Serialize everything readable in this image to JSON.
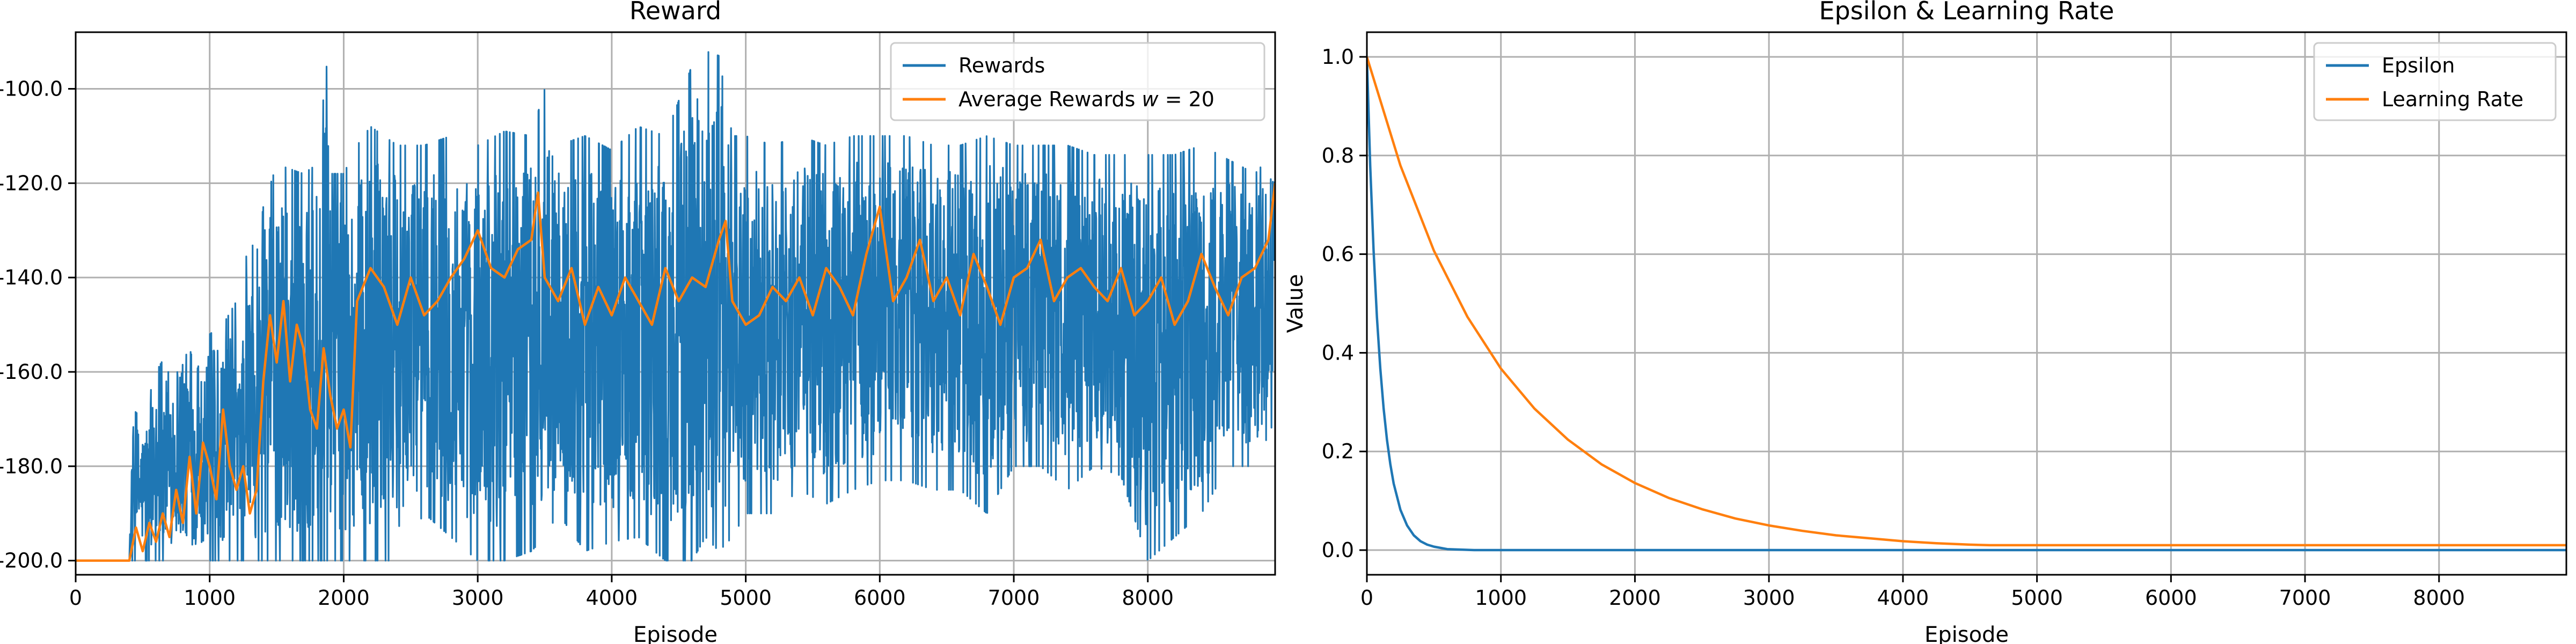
{
  "chart_data": [
    {
      "type": "line",
      "title": "Reward",
      "xlabel": "Episode",
      "ylabel": "",
      "xlim": [
        0,
        8950
      ],
      "ylim": [
        -203,
        -88
      ],
      "x_ticks": [
        0,
        1000,
        2000,
        3000,
        4000,
        5000,
        6000,
        7000,
        8000
      ],
      "y_ticks": [
        -200,
        -180,
        -160,
        -140,
        -120,
        -100
      ],
      "grid": true,
      "legend_position": "top-right",
      "series": [
        {
          "name": "Rewards",
          "color": "#1f77b4",
          "style": "noisy band",
          "envelope_x": [
            0,
            400,
            430,
            500,
            600,
            700,
            800,
            900,
            1000,
            1100,
            1200,
            1300,
            1350,
            1400,
            1500,
            1600,
            1700,
            1800,
            1880,
            1900,
            2000,
            2100,
            2200,
            2400,
            2600,
            2800,
            3000,
            3200,
            3400,
            3500,
            3600,
            3800,
            4000,
            4200,
            4400,
            4600,
            4700,
            4800,
            4900,
            5000,
            5200,
            5400,
            5600,
            5800,
            6000,
            6200,
            6400,
            6600,
            6800,
            7000,
            7200,
            7400,
            7600,
            7800,
            8000,
            8200,
            8400,
            8600,
            8800,
            8950
          ],
          "envelope_upper": [
            -200,
            -200,
            -168,
            -170,
            -160,
            -155,
            -150,
            -160,
            -152,
            -150,
            -145,
            -132,
            -135,
            -125,
            -116,
            -117,
            -118,
            -116,
            -93,
            -118,
            -118,
            -112,
            -108,
            -112,
            -112,
            -110,
            -112,
            -109,
            -110,
            -100,
            -112,
            -110,
            -113,
            -108,
            -110,
            -95,
            -92,
            -93,
            -110,
            -110,
            -112,
            -110,
            -112,
            -110,
            -110,
            -110,
            -112,
            -112,
            -110,
            -112,
            -112,
            -112,
            -114,
            -114,
            -114,
            -114,
            -112,
            -115,
            -118,
            -113
          ],
          "envelope_lower": [
            -200,
            -200,
            -200,
            -200,
            -200,
            -200,
            -200,
            -200,
            -200,
            -200,
            -200,
            -200,
            -200,
            -200,
            -200,
            -200,
            -200,
            -200,
            -200,
            -200,
            -200,
            -200,
            -200,
            -200,
            -190,
            -195,
            -200,
            -200,
            -198,
            -195,
            -190,
            -198,
            -196,
            -195,
            -200,
            -200,
            -195,
            -198,
            -195,
            -190,
            -190,
            -185,
            -188,
            -185,
            -183,
            -183,
            -185,
            -185,
            -190,
            -180,
            -180,
            -185,
            -180,
            -182,
            -200,
            -195,
            -190,
            -180,
            -180,
            -170
          ]
        },
        {
          "name": "Average Rewards $w = 20$",
          "color": "#ff7f0e",
          "x": [
            0,
            400,
            450,
            500,
            550,
            600,
            650,
            700,
            750,
            800,
            850,
            900,
            950,
            1000,
            1050,
            1100,
            1150,
            1200,
            1250,
            1300,
            1350,
            1400,
            1450,
            1500,
            1550,
            1600,
            1650,
            1700,
            1750,
            1800,
            1850,
            1900,
            1950,
            2000,
            2050,
            2100,
            2200,
            2300,
            2400,
            2500,
            2600,
            2700,
            2800,
            2900,
            3000,
            3100,
            3200,
            3300,
            3400,
            3450,
            3500,
            3600,
            3700,
            3800,
            3900,
            4000,
            4100,
            4200,
            4300,
            4400,
            4500,
            4600,
            4700,
            4800,
            4850,
            4900,
            5000,
            5100,
            5200,
            5300,
            5400,
            5500,
            5600,
            5700,
            5800,
            5900,
            6000,
            6100,
            6200,
            6300,
            6400,
            6500,
            6600,
            6700,
            6800,
            6900,
            7000,
            7100,
            7200,
            7300,
            7400,
            7500,
            7600,
            7700,
            7800,
            7900,
            8000,
            8100,
            8200,
            8300,
            8400,
            8500,
            8600,
            8700,
            8800,
            8900,
            8950
          ],
          "y": [
            -200,
            -200,
            -193,
            -198,
            -192,
            -196,
            -190,
            -195,
            -185,
            -192,
            -178,
            -190,
            -175,
            -180,
            -187,
            -168,
            -180,
            -185,
            -180,
            -190,
            -185,
            -162,
            -148,
            -158,
            -145,
            -162,
            -150,
            -155,
            -168,
            -172,
            -155,
            -165,
            -172,
            -168,
            -176,
            -145,
            -138,
            -142,
            -150,
            -140,
            -148,
            -145,
            -140,
            -136,
            -130,
            -138,
            -140,
            -134,
            -132,
            -122,
            -140,
            -145,
            -138,
            -150,
            -142,
            -148,
            -140,
            -145,
            -150,
            -138,
            -145,
            -140,
            -142,
            -132,
            -128,
            -145,
            -150,
            -148,
            -142,
            -145,
            -140,
            -148,
            -138,
            -142,
            -148,
            -135,
            -125,
            -145,
            -140,
            -132,
            -145,
            -140,
            -148,
            -135,
            -142,
            -150,
            -140,
            -138,
            -132,
            -145,
            -140,
            -138,
            -142,
            -145,
            -138,
            -148,
            -145,
            -140,
            -150,
            -145,
            -135,
            -142,
            -148,
            -140,
            -138,
            -132,
            -120
          ]
        }
      ]
    },
    {
      "type": "line",
      "title": "Epsilon & Learning Rate",
      "xlabel": "Episode",
      "ylabel": "Value",
      "xlim": [
        0,
        8950
      ],
      "ylim": [
        -0.05,
        1.05
      ],
      "x_ticks": [
        0,
        1000,
        2000,
        3000,
        4000,
        5000,
        6000,
        7000,
        8000
      ],
      "y_ticks": [
        0.0,
        0.2,
        0.4,
        0.6,
        0.8,
        1.0
      ],
      "grid": true,
      "legend_position": "top-right",
      "series": [
        {
          "name": "Epsilon",
          "color": "#1f77b4",
          "x": [
            0,
            25,
            50,
            75,
            100,
            125,
            150,
            175,
            200,
            250,
            300,
            350,
            400,
            450,
            500,
            600,
            700,
            800,
            1000,
            2000,
            3000,
            4000,
            5000,
            6000,
            7000,
            8000,
            8950
          ],
          "y": [
            1.0,
            0.779,
            0.607,
            0.472,
            0.368,
            0.287,
            0.223,
            0.174,
            0.135,
            0.082,
            0.05,
            0.03,
            0.018,
            0.011,
            0.007,
            0.002,
            0.001,
            0.0,
            0.0,
            0.0,
            0.0,
            0.0,
            0.0,
            0.0,
            0.0,
            0.0,
            0.0
          ]
        },
        {
          "name": "Learning Rate",
          "color": "#ff7f0e",
          "x": [
            0,
            250,
            500,
            750,
            1000,
            1250,
            1500,
            1750,
            2000,
            2250,
            2500,
            2750,
            3000,
            3250,
            3500,
            3750,
            4000,
            4250,
            4500,
            4650,
            5000,
            6000,
            7000,
            8000,
            8950
          ],
          "y": [
            1.0,
            0.78,
            0.607,
            0.473,
            0.368,
            0.287,
            0.224,
            0.174,
            0.136,
            0.106,
            0.083,
            0.064,
            0.05,
            0.039,
            0.03,
            0.024,
            0.018,
            0.014,
            0.011,
            0.01,
            0.01,
            0.01,
            0.01,
            0.01,
            0.01
          ]
        }
      ]
    }
  ]
}
